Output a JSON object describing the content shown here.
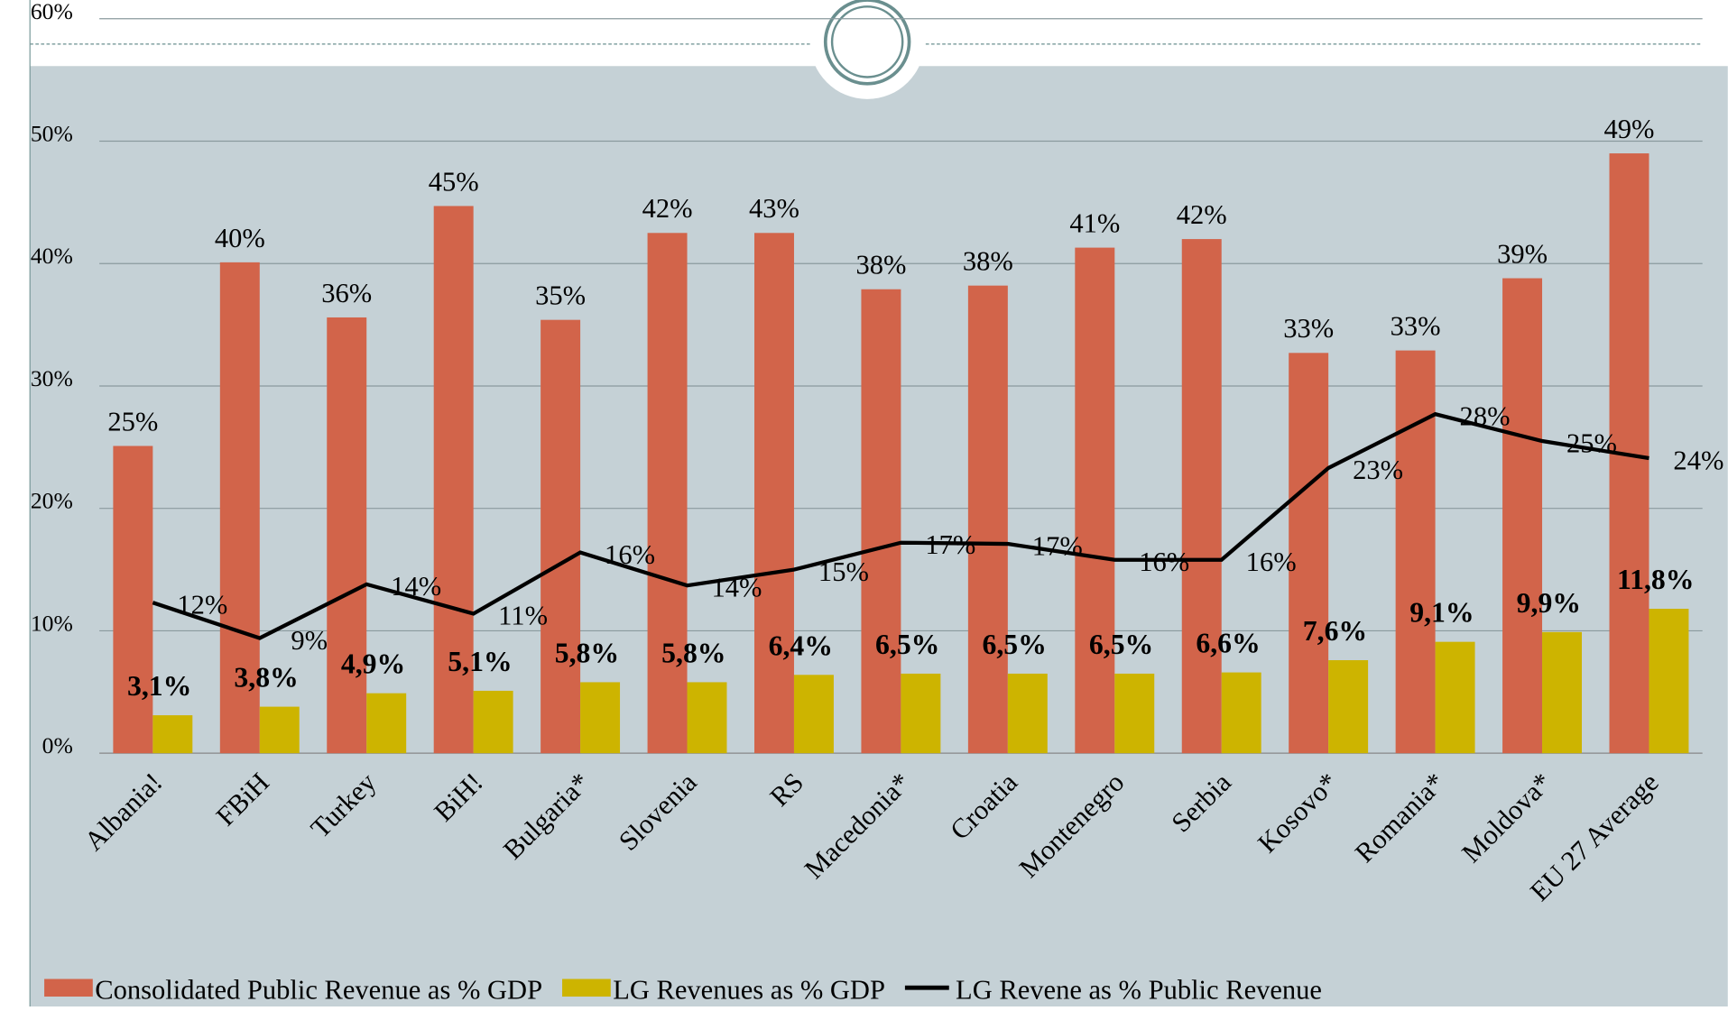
{
  "chart_data": {
    "type": "bar-line",
    "categories": [
      "Albania!",
      "FBiH",
      "Turkey",
      "BiH!",
      "Bulgaria*",
      "Slovenia",
      "RS",
      "Macedonia*",
      "Croatia",
      "Montenegro",
      "Serbia",
      "Kosovo*",
      "Romania*",
      "Moldova*",
      "EU 27 Average"
    ],
    "series": [
      {
        "name": "Consolidated Public Revenue as % GDP",
        "color": "#d2644a",
        "kind": "bar",
        "values": [
          25.1,
          40.1,
          35.6,
          44.7,
          35.4,
          42.5,
          42.5,
          37.9,
          38.2,
          41.3,
          42.0,
          32.7,
          32.9,
          38.8,
          49.0
        ],
        "value_labels": [
          "25%",
          "40%",
          "36%",
          "45%",
          "35%",
          "42%",
          "43%",
          "38%",
          "38%",
          "41%",
          "42%",
          "33%",
          "33%",
          "39%",
          "49%"
        ]
      },
      {
        "name": "LG Revenues as % GDP",
        "color": "#cdb400",
        "kind": "bar",
        "values": [
          3.1,
          3.8,
          4.9,
          5.1,
          5.8,
          5.8,
          6.4,
          6.5,
          6.5,
          6.5,
          6.6,
          7.6,
          9.1,
          9.9,
          11.8
        ],
        "value_labels": [
          "3,1%",
          "3,8%",
          "4,9%",
          "5,1%",
          "5,8%",
          "5,8%",
          "6,4%",
          "6,5%",
          "6,5%",
          "6,5%",
          "6,6%",
          "7,6%",
          "9,1%",
          "9,9%",
          "11,8%"
        ]
      },
      {
        "name": "LG Revene as % Public Revenue",
        "color": "#000000",
        "kind": "line",
        "values": [
          12.3,
          9.4,
          13.8,
          11.4,
          16.4,
          13.7,
          15.0,
          17.2,
          17.1,
          15.8,
          15.8,
          23.3,
          27.7,
          25.5,
          24.1
        ],
        "value_labels": [
          "12%",
          "9%",
          "14%",
          "11%",
          "16%",
          "14%",
          "15%",
          "17%",
          "17%",
          "16%",
          "16%",
          "23%",
          "28%",
          "25%",
          "24%"
        ]
      }
    ],
    "ylim": [
      0,
      60
    ],
    "yticks": [
      {
        "value": 0,
        "label": "0%"
      },
      {
        "value": 10,
        "label": "10%"
      },
      {
        "value": 20,
        "label": "20%"
      },
      {
        "value": 30,
        "label": "30%"
      },
      {
        "value": 40,
        "label": "40%"
      },
      {
        "value": 50,
        "label": "50%"
      },
      {
        "value": 60,
        "label": "60%"
      }
    ],
    "grid": true
  }
}
